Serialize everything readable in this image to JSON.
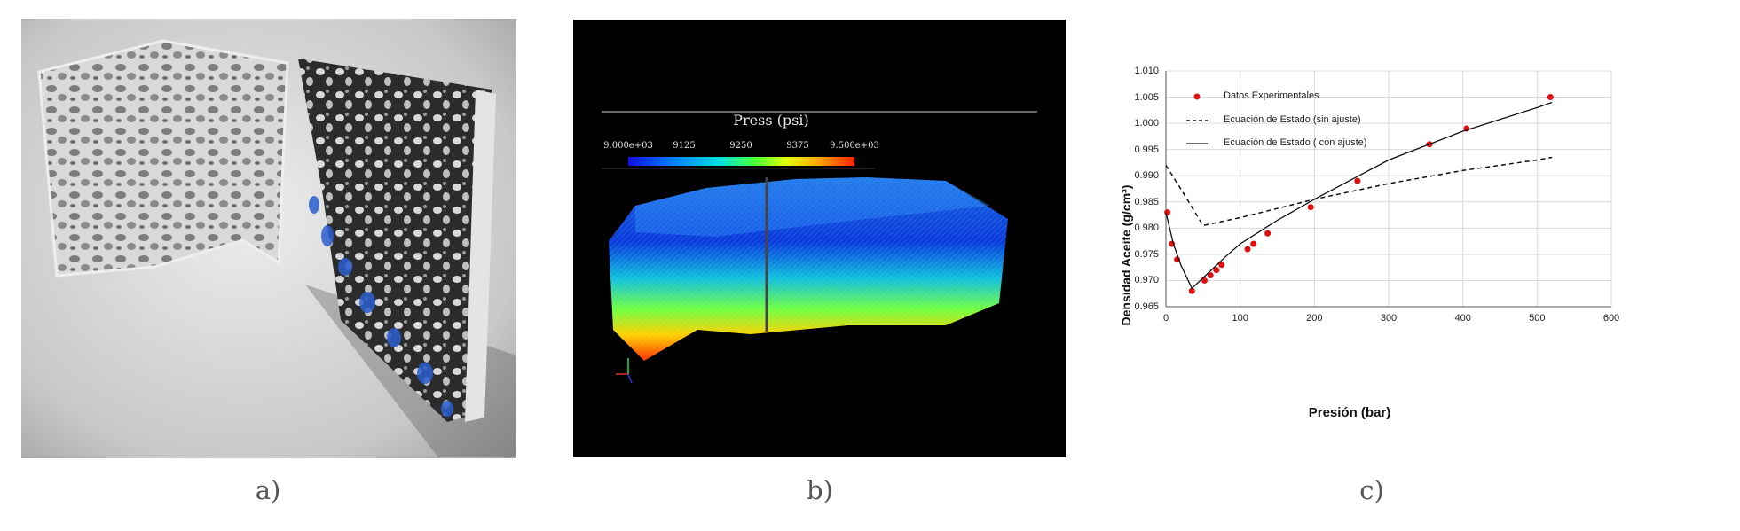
{
  "captions": {
    "a": "a)",
    "b": "b)",
    "c": "c)"
  },
  "panel_b": {
    "title": "Press (psi)",
    "colorbar_ticks": [
      "9.000e+03",
      "9125",
      "9250",
      "9375",
      "9.500e+03"
    ],
    "colormap": [
      "#1010e0",
      "#0080ff",
      "#00e0e0",
      "#40ff40",
      "#e0ff00",
      "#ffa000",
      "#ff2000"
    ]
  },
  "chart_data": {
    "type": "scatter",
    "xlabel": "Presión  (bar)",
    "ylabel": "Densidad Aceite (g/cm³)",
    "xlim": [
      0,
      600
    ],
    "ylim": [
      0.965,
      1.01
    ],
    "x_ticks": [
      "0",
      "100",
      "200",
      "300",
      "400",
      "500",
      "600"
    ],
    "y_ticks": [
      "0.965",
      "0.970",
      "0.975",
      "0.980",
      "0.985",
      "0.990",
      "0.995",
      "1.000",
      "1.005",
      "1.010"
    ],
    "grid": true,
    "legend_position": "top-left",
    "series": [
      {
        "name": "Datos Experimentales",
        "kind": "markers",
        "color": "#e01010",
        "x": [
          2,
          8,
          15,
          35,
          52,
          60,
          68,
          75,
          110,
          118,
          137,
          195,
          258,
          355,
          405,
          518
        ],
        "y": [
          0.983,
          0.977,
          0.974,
          0.968,
          0.97,
          0.971,
          0.972,
          0.973,
          0.976,
          0.977,
          0.979,
          0.984,
          0.989,
          0.996,
          0.999,
          1.005
        ]
      },
      {
        "name": "Ecuación de Estado (sin ajuste)",
        "kind": "dashed",
        "color": "#111111",
        "x": [
          0,
          20,
          35,
          50,
          100,
          200,
          300,
          400,
          500,
          520
        ],
        "y": [
          0.992,
          0.9875,
          0.984,
          0.9805,
          0.982,
          0.9855,
          0.9885,
          0.991,
          0.993,
          0.9935
        ]
      },
      {
        "name": "Ecuación de Estado ( con ajuste)",
        "kind": "solid",
        "color": "#111111",
        "x": [
          0,
          10,
          20,
          35,
          50,
          80,
          100,
          150,
          200,
          260,
          300,
          400,
          500,
          520
        ],
        "y": [
          0.983,
          0.977,
          0.973,
          0.9685,
          0.9705,
          0.9745,
          0.977,
          0.9815,
          0.9855,
          0.99,
          0.993,
          0.9985,
          1.003,
          1.004
        ]
      }
    ]
  }
}
